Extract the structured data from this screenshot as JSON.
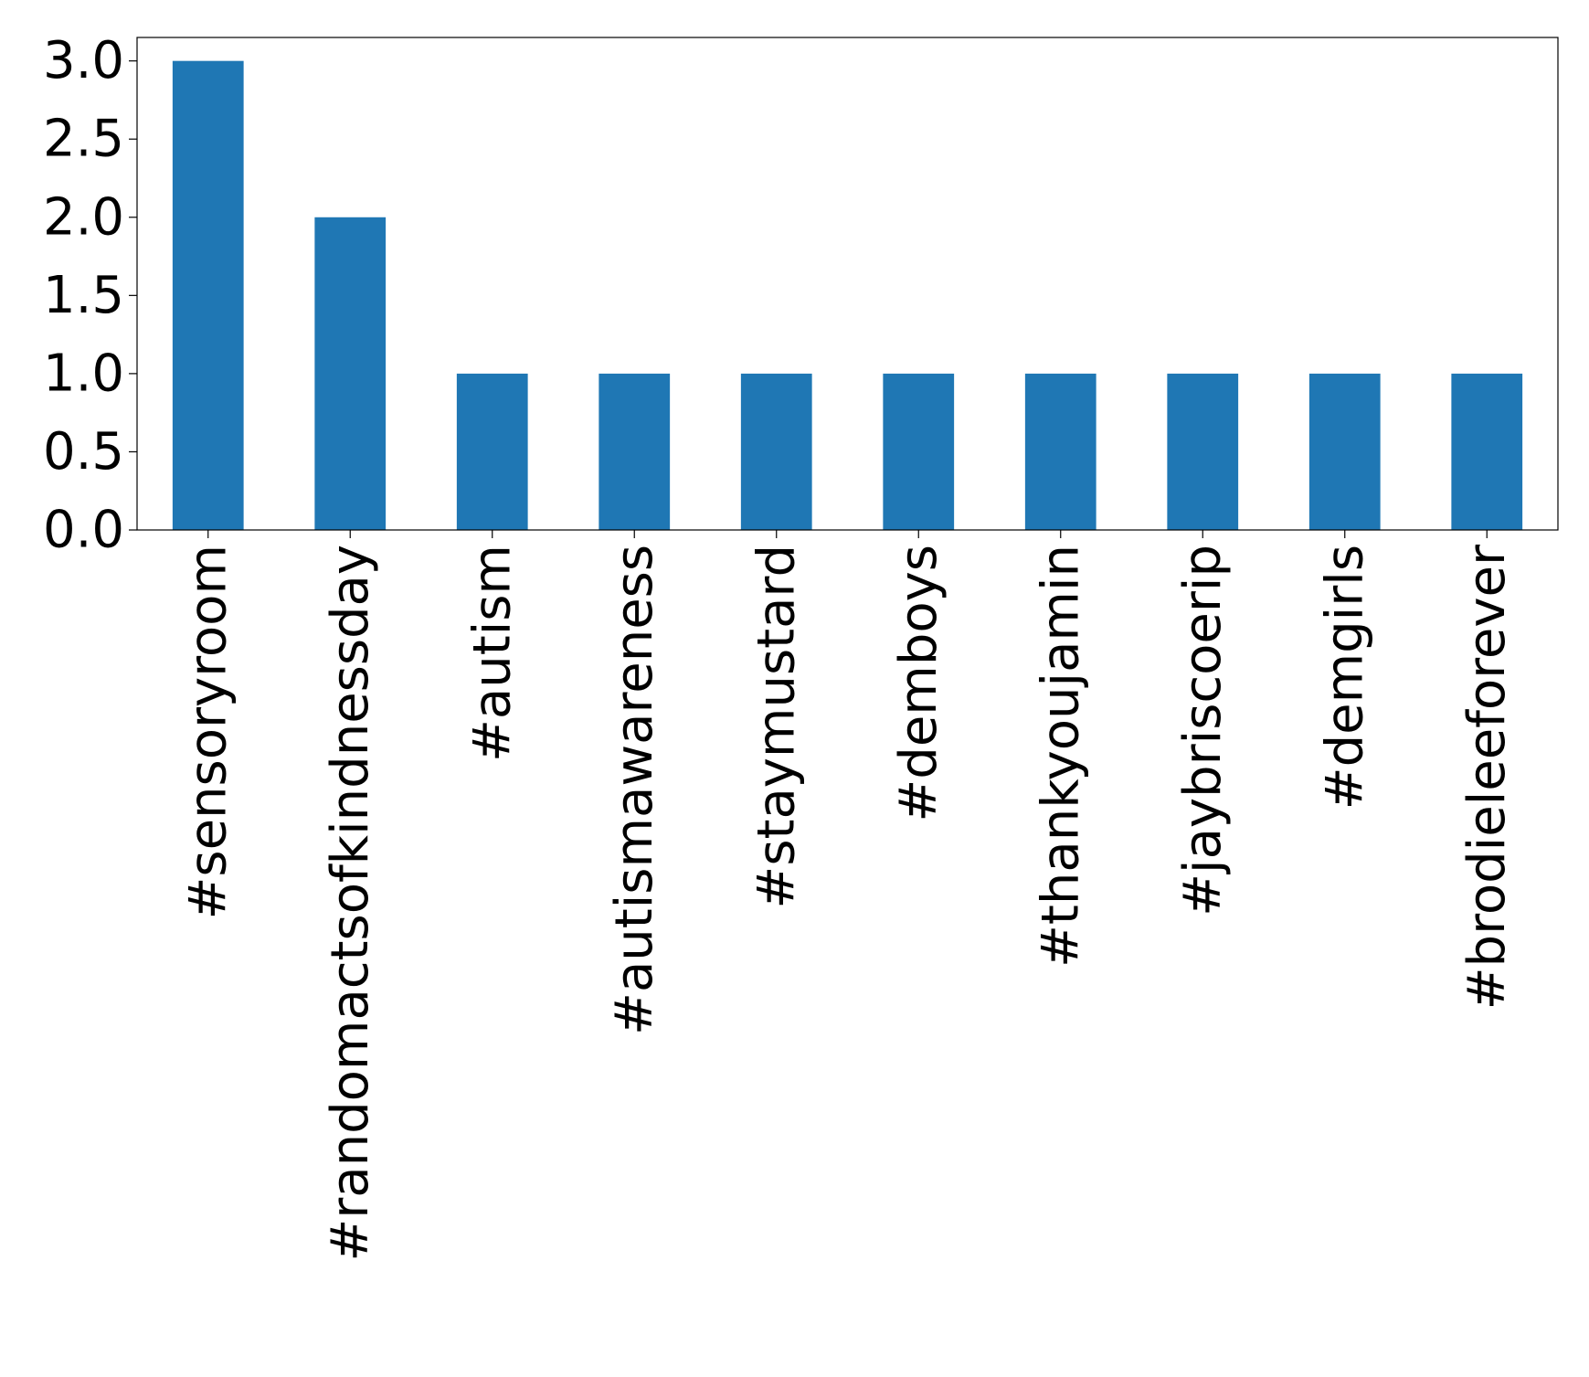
{
  "chart_data": {
    "type": "bar",
    "title": "",
    "xlabel": "",
    "ylabel": "",
    "categories": [
      "#sensoryroom",
      "#randomactsofkindnessday",
      "#autism",
      "#autismawareness",
      "#staymustard",
      "#demboys",
      "#thankyoujamin",
      "#jaybriscoerip",
      "#demgirls",
      "#brodieleeforever"
    ],
    "values": [
      3,
      2,
      1,
      1,
      1,
      1,
      1,
      1,
      1,
      1
    ],
    "ylim": [
      0,
      3.15
    ],
    "yticks": [
      0.0,
      0.5,
      1.0,
      1.5,
      2.0,
      2.5,
      3.0
    ],
    "ytick_labels": [
      "0.0",
      "0.5",
      "1.0",
      "1.5",
      "2.0",
      "2.5",
      "3.0"
    ],
    "grid": false,
    "legend": "none",
    "bar_color": "#1f77b4"
  }
}
